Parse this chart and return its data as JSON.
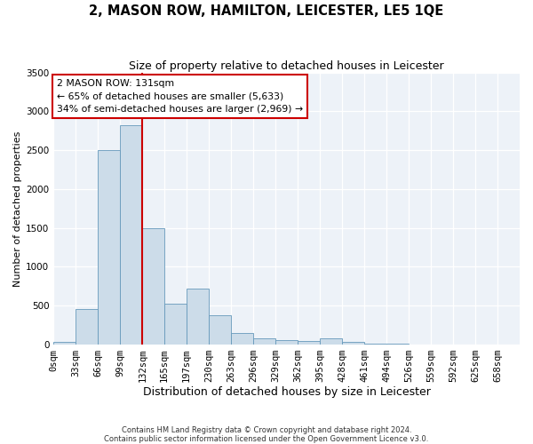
{
  "title": "2, MASON ROW, HAMILTON, LEICESTER, LE5 1QE",
  "subtitle": "Size of property relative to detached houses in Leicester",
  "xlabel": "Distribution of detached houses by size in Leicester",
  "ylabel": "Number of detached properties",
  "footnote1": "Contains HM Land Registry data © Crown copyright and database right 2024.",
  "footnote2": "Contains public sector information licensed under the Open Government Licence v3.0.",
  "bin_labels": [
    "0sqm",
    "33sqm",
    "66sqm",
    "99sqm",
    "132sqm",
    "165sqm",
    "197sqm",
    "230sqm",
    "263sqm",
    "296sqm",
    "329sqm",
    "362sqm",
    "395sqm",
    "428sqm",
    "461sqm",
    "494sqm",
    "526sqm",
    "559sqm",
    "592sqm",
    "625sqm",
    "658sqm"
  ],
  "bar_values": [
    30,
    460,
    2500,
    2820,
    1500,
    520,
    720,
    380,
    145,
    80,
    55,
    50,
    80,
    30,
    15,
    8,
    5,
    3,
    2,
    2,
    0
  ],
  "bar_color": "#ccdce9",
  "bar_edge_color": "#6699bb",
  "property_line_x": 4,
  "annotation_title": "2 MASON ROW: 131sqm",
  "annotation_line1": "← 65% of detached houses are smaller (5,633)",
  "annotation_line2": "34% of semi-detached houses are larger (2,969) →",
  "annotation_color": "#cc0000",
  "ylim": [
    0,
    3500
  ],
  "yticks": [
    0,
    500,
    1000,
    1500,
    2000,
    2500,
    3000,
    3500
  ],
  "background_color": "#edf2f8",
  "title_fontsize": 10.5,
  "subtitle_fontsize": 9,
  "ylabel_fontsize": 8,
  "xlabel_fontsize": 9,
  "tick_fontsize": 7.5
}
